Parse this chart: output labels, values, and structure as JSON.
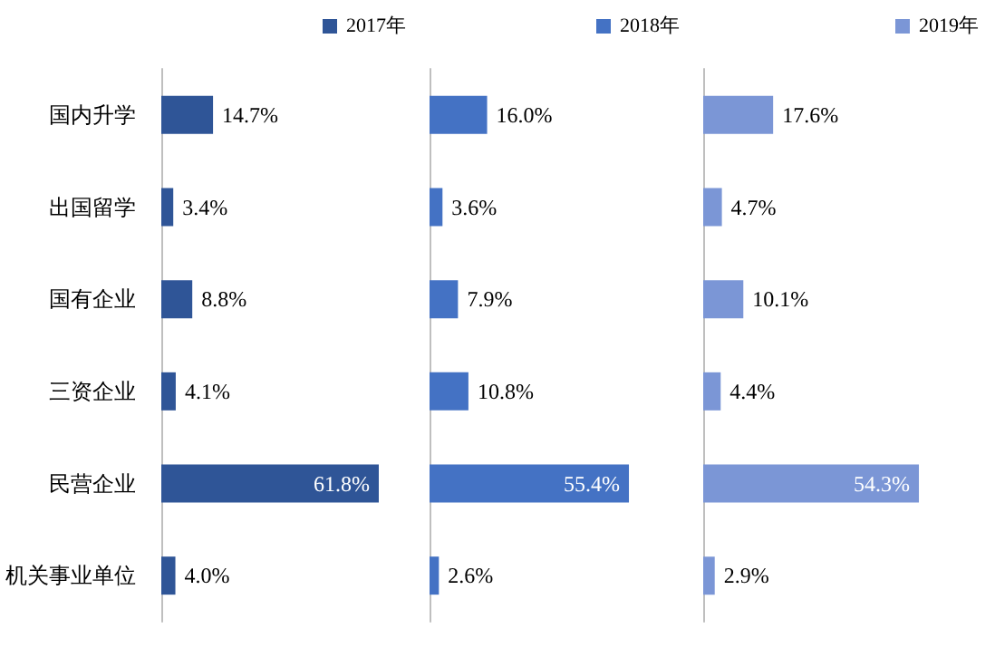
{
  "chart_data": [
    {
      "type": "bar",
      "orientation": "horizontal",
      "categories": [
        "国内升学",
        "出国留学",
        "国有企业",
        "三资企业",
        "民营企业",
        "机关事业单位"
      ],
      "tick_labels": "y",
      "legend": "top right",
      "grid": false,
      "series": [
        {
          "name": "2017年",
          "color": "#2f5597",
          "values": [
            14.7,
            3.4,
            8.8,
            4.1,
            61.8,
            4.0
          ],
          "value_labels": [
            "14.7%",
            "3.4%",
            "8.8%",
            "4.1%",
            "61.8%",
            "4.0%"
          ]
        }
      ]
    },
    {
      "type": "bar",
      "orientation": "horizontal",
      "categories": [
        null,
        null,
        null,
        null,
        null,
        null
      ],
      "tick_labels": false,
      "legend": "top right",
      "grid": false,
      "series": [
        {
          "name": "2018年",
          "color": "#4472c4",
          "values": [
            16.0,
            3.6,
            7.9,
            10.8,
            55.4,
            2.6
          ],
          "value_labels": [
            "16.0%",
            "3.6%",
            "7.9%",
            "10.8%",
            "55.4%",
            "2.6%"
          ]
        }
      ]
    },
    {
      "type": "bar",
      "orientation": "horizontal",
      "categories": [
        null,
        null,
        null,
        null,
        null,
        null
      ],
      "tick_labels": false,
      "legend": "top right",
      "grid": false,
      "series": [
        {
          "name": "2019年",
          "color": "#7b96d6",
          "values": [
            17.6,
            4.7,
            10.1,
            4.4,
            54.3,
            2.9
          ],
          "value_labels": [
            "17.6%",
            "4.7%",
            "10.1%",
            "4.4%",
            "54.3%",
            "2.9%"
          ]
        }
      ]
    }
  ]
}
